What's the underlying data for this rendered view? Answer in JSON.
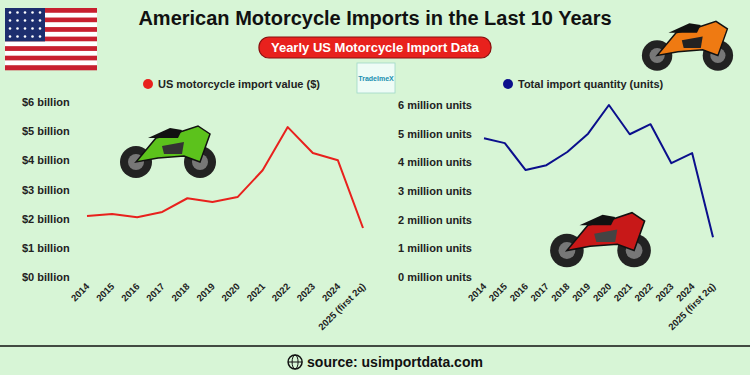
{
  "header": {
    "title": "American Motorcycle Imports in the Last 10 Years",
    "subtitle": "Yearly US Motorcycle Import Data",
    "logo": "TradeImeX"
  },
  "chart_data": [
    {
      "type": "line",
      "categories": [
        "2014",
        "2015",
        "2016",
        "2017",
        "2018",
        "2019",
        "2020",
        "2021",
        "2022",
        "2023",
        "2024",
        "2025 (first 2q)"
      ],
      "series": [
        {
          "name": "US motorcycle import value ($)",
          "color": "#e8211d",
          "values": [
            2.09,
            2.16,
            2.05,
            2.23,
            2.7,
            2.57,
            2.74,
            3.66,
            5.14,
            4.25,
            4.0,
            1.68
          ]
        }
      ],
      "ylim": [
        0,
        6
      ],
      "yticks": [
        {
          "value": 0,
          "label": "$0 billion"
        },
        {
          "value": 1,
          "label": "$1 billion"
        },
        {
          "value": 2,
          "label": "$2 billion"
        },
        {
          "value": 3,
          "label": "$3 billion"
        },
        {
          "value": 4,
          "label": "$4 billion"
        },
        {
          "value": 5,
          "label": "$5 billion"
        },
        {
          "value": 6,
          "label": "$6 billion"
        }
      ],
      "grid": false,
      "legend": "top",
      "marker": "none",
      "line_style": "solid"
    },
    {
      "type": "line",
      "categories": [
        "2014",
        "2015",
        "2016",
        "2017",
        "2018",
        "2019",
        "2020",
        "2021",
        "2022",
        "2023",
        "2024",
        "2025 (first 2q)"
      ],
      "series": [
        {
          "name": "Total import quantity (units)",
          "color": "#0b0f8c",
          "values": [
            4.84,
            4.67,
            3.73,
            3.9,
            4.36,
            5.0,
            6.0,
            4.98,
            5.33,
            3.97,
            4.32,
            1.39
          ]
        }
      ],
      "ylim": [
        0,
        6
      ],
      "yticks": [
        {
          "value": 0,
          "label": "0 million units"
        },
        {
          "value": 1,
          "label": "1 million units"
        },
        {
          "value": 2,
          "label": "2 million units"
        },
        {
          "value": 3,
          "label": "3 million units"
        },
        {
          "value": 4,
          "label": "4 million units"
        },
        {
          "value": 5,
          "label": "5 million units"
        },
        {
          "value": 6,
          "label": "6 million units"
        }
      ],
      "grid": false,
      "legend": "top",
      "marker": "none",
      "line_style": "solid"
    }
  ],
  "footer": {
    "source": "source: usimportdata.com"
  }
}
